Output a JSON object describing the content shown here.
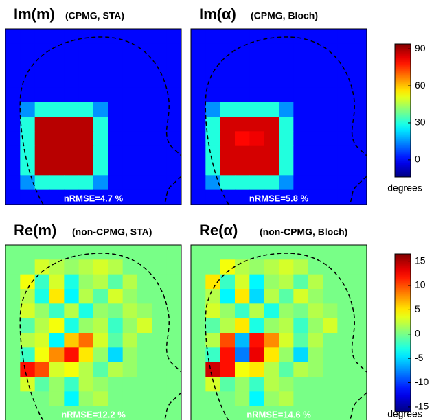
{
  "chart_data": [
    {
      "type": "heatmap",
      "colormap": "jet",
      "colorbar": {
        "ylim": [
          -14,
          94
        ],
        "yticks": [
          0,
          30,
          60,
          90
        ],
        "label": "degrees"
      },
      "panels": [
        {
          "title": "Im(m)",
          "subtitle": "(CPMG, STA)",
          "label": "nRMSE=4.7 %",
          "values": [
            [
              0,
              0,
              0,
              0,
              0,
              0,
              0,
              0,
              0,
              0,
              0,
              0
            ],
            [
              0,
              0,
              0,
              0,
              0,
              0,
              0,
              0,
              0,
              0,
              0,
              0
            ],
            [
              0,
              0,
              0,
              0,
              0,
              0,
              0,
              0,
              0,
              0,
              0,
              0
            ],
            [
              0,
              0,
              0,
              0,
              0,
              0,
              0,
              0,
              0,
              0,
              0,
              0
            ],
            [
              0,
              0,
              0,
              0,
              0,
              0,
              0,
              0,
              0,
              0,
              0,
              0
            ],
            [
              0,
              15,
              30,
              30,
              30,
              30,
              15,
              0,
              0,
              0,
              0,
              0
            ],
            [
              0,
              30,
              88,
              88,
              88,
              88,
              30,
              0,
              0,
              0,
              0,
              0
            ],
            [
              0,
              30,
              88,
              88,
              88,
              88,
              30,
              0,
              0,
              0,
              0,
              0
            ],
            [
              0,
              30,
              88,
              88,
              88,
              88,
              30,
              0,
              0,
              0,
              0,
              0
            ],
            [
              0,
              30,
              88,
              88,
              88,
              88,
              30,
              0,
              0,
              0,
              0,
              0
            ],
            [
              0,
              15,
              30,
              30,
              30,
              30,
              15,
              0,
              0,
              0,
              0,
              0
            ],
            [
              0,
              0,
              0,
              0,
              0,
              0,
              0,
              0,
              0,
              0,
              0,
              0
            ]
          ]
        },
        {
          "title": "Im(α)",
          "subtitle": "(CPMG, Bloch)",
          "label": "nRMSE=5.8 %",
          "values": [
            [
              0,
              0,
              0,
              0,
              0,
              0,
              0,
              0,
              0,
              0,
              0,
              0
            ],
            [
              0,
              0,
              0,
              0,
              0,
              0,
              0,
              0,
              0,
              0,
              0,
              0
            ],
            [
              0,
              0,
              0,
              0,
              0,
              0,
              0,
              0,
              0,
              0,
              0,
              0
            ],
            [
              0,
              0,
              0,
              0,
              0,
              0,
              0,
              0,
              0,
              0,
              0,
              0
            ],
            [
              0,
              0,
              0,
              0,
              0,
              0,
              0,
              0,
              0,
              0,
              0,
              0
            ],
            [
              0,
              15,
              30,
              30,
              30,
              30,
              15,
              0,
              0,
              0,
              0,
              0
            ],
            [
              0,
              30,
              85,
              85,
              85,
              85,
              30,
              0,
              0,
              0,
              0,
              0
            ],
            [
              0,
              30,
              85,
              80,
              82,
              85,
              30,
              0,
              0,
              0,
              0,
              0
            ],
            [
              0,
              30,
              85,
              85,
              85,
              85,
              30,
              0,
              0,
              0,
              0,
              0
            ],
            [
              0,
              30,
              85,
              85,
              85,
              85,
              30,
              0,
              0,
              0,
              0,
              0
            ],
            [
              0,
              15,
              30,
              30,
              30,
              30,
              15,
              0,
              0,
              0,
              0,
              0
            ],
            [
              0,
              0,
              0,
              0,
              0,
              0,
              0,
              0,
              0,
              0,
              0,
              0
            ]
          ]
        }
      ]
    },
    {
      "type": "heatmap",
      "colormap": "jet",
      "colorbar": {
        "ylim": [
          -16,
          16.5
        ],
        "yticks": [
          -15,
          -10,
          -5,
          0,
          5,
          10,
          15
        ],
        "label": "degrees"
      },
      "panels": [
        {
          "title": "Re(m)",
          "subtitle": "(non-CPMG, STA)",
          "label": "nRMSE=12.2 %",
          "values": [
            [
              0,
              0,
              0,
              0,
              0,
              0,
              0,
              0,
              0,
              0,
              0,
              0
            ],
            [
              0,
              0,
              3,
              2,
              1,
              2,
              3,
              2,
              0,
              0,
              0,
              0
            ],
            [
              0,
              4,
              -2,
              3,
              -3,
              1,
              2,
              -1,
              2,
              0,
              0,
              0
            ],
            [
              0,
              2,
              -3,
              5,
              -4,
              2,
              -1,
              3,
              1,
              0,
              0,
              0
            ],
            [
              0,
              3,
              1,
              -2,
              2,
              -3,
              1,
              0,
              2,
              1,
              0,
              0
            ],
            [
              0,
              -1,
              2,
              4,
              -3,
              1,
              2,
              -2,
              1,
              3,
              0,
              0
            ],
            [
              0,
              2,
              3,
              -4,
              6,
              9,
              3,
              -1,
              2,
              0,
              0,
              0
            ],
            [
              0,
              -2,
              4,
              8,
              12,
              5,
              1,
              -5,
              1,
              0,
              0,
              0
            ],
            [
              0,
              12,
              10,
              3,
              4,
              2,
              -1,
              2,
              1,
              0,
              0,
              0
            ],
            [
              0,
              3,
              -1,
              1,
              -2,
              2,
              1,
              0,
              0,
              0,
              0,
              0
            ],
            [
              0,
              0,
              0,
              1,
              -4,
              1,
              2,
              0,
              0,
              0,
              0,
              0
            ],
            [
              0,
              0,
              0,
              0,
              0,
              0,
              0,
              0,
              0,
              0,
              0,
              0
            ]
          ]
        },
        {
          "title": "Re(α)",
          "subtitle": "(non-CPMG, Bloch)",
          "label": "nRMSE=14.6 %",
          "values": [
            [
              0,
              0,
              0,
              0,
              0,
              0,
              0,
              0,
              0,
              0,
              0,
              0
            ],
            [
              0,
              0,
              4,
              2,
              1,
              2,
              3,
              2,
              0,
              0,
              0,
              0
            ],
            [
              0,
              5,
              -2,
              3,
              -4,
              1,
              2,
              -1,
              2,
              0,
              0,
              0
            ],
            [
              0,
              2,
              -4,
              5,
              -5,
              2,
              -1,
              3,
              1,
              0,
              0,
              0
            ],
            [
              0,
              3,
              1,
              -2,
              2,
              -3,
              1,
              0,
              2,
              1,
              0,
              0
            ],
            [
              0,
              -1,
              2,
              5,
              -3,
              1,
              2,
              -2,
              1,
              3,
              0,
              0
            ],
            [
              0,
              2,
              10,
              -6,
              12,
              8,
              3,
              -1,
              2,
              0,
              0,
              0
            ],
            [
              0,
              -2,
              12,
              -8,
              13,
              5,
              1,
              -5,
              1,
              0,
              0,
              0
            ],
            [
              0,
              14,
              12,
              4,
              5,
              2,
              -1,
              2,
              1,
              0,
              0,
              0
            ],
            [
              0,
              3,
              -1,
              1,
              -2,
              2,
              1,
              0,
              0,
              0,
              0,
              0
            ],
            [
              0,
              0,
              0,
              1,
              -4,
              1,
              2,
              0,
              0,
              0,
              0,
              0
            ],
            [
              0,
              0,
              0,
              0,
              0,
              0,
              0,
              0,
              0,
              0,
              0,
              0
            ]
          ]
        }
      ]
    }
  ]
}
